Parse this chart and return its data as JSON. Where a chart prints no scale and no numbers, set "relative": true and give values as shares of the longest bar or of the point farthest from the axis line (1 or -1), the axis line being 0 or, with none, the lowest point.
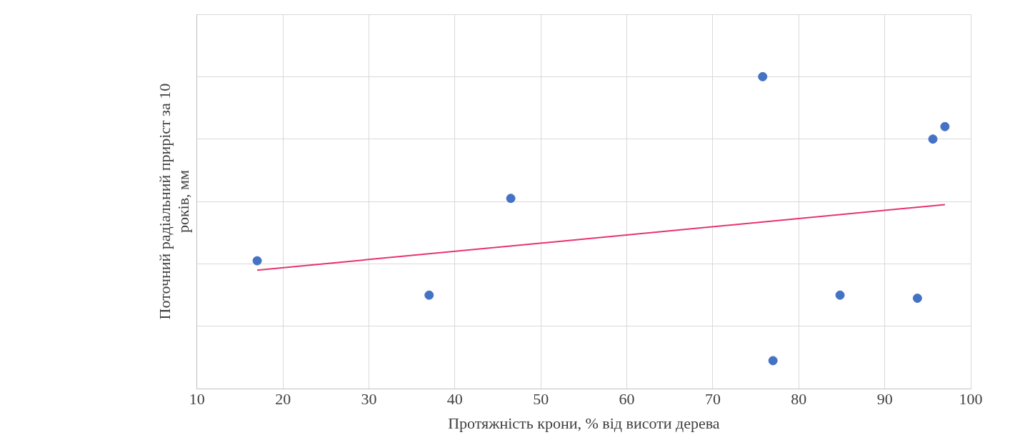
{
  "chart_data": {
    "type": "scatter",
    "xlabel": "Протяжність крони, % від висоти дерева",
    "ylabel": "Поточний радіальний приріст за 10 років, мм",
    "xlim": [
      10,
      100
    ],
    "xticks": [
      10,
      20,
      30,
      40,
      50,
      60,
      70,
      80,
      90,
      100
    ],
    "relative": true,
    "grid": true,
    "legend": false,
    "marker": "circle",
    "series": [
      {
        "color": "#4472c4",
        "x": [
          17,
          37,
          46.5,
          75.8,
          77,
          84.8,
          93.8,
          95.6,
          97
        ],
        "values": [
          0.41,
          0.3,
          0.61,
          1,
          0.09,
          0.3,
          0.29,
          0.8,
          0.84
        ]
      },
      {
        "type": "line",
        "color": "#e8336c",
        "line_style": "solid",
        "marker": "none",
        "x": [
          17,
          97
        ],
        "values": [
          0.38,
          0.59
        ]
      }
    ]
  }
}
